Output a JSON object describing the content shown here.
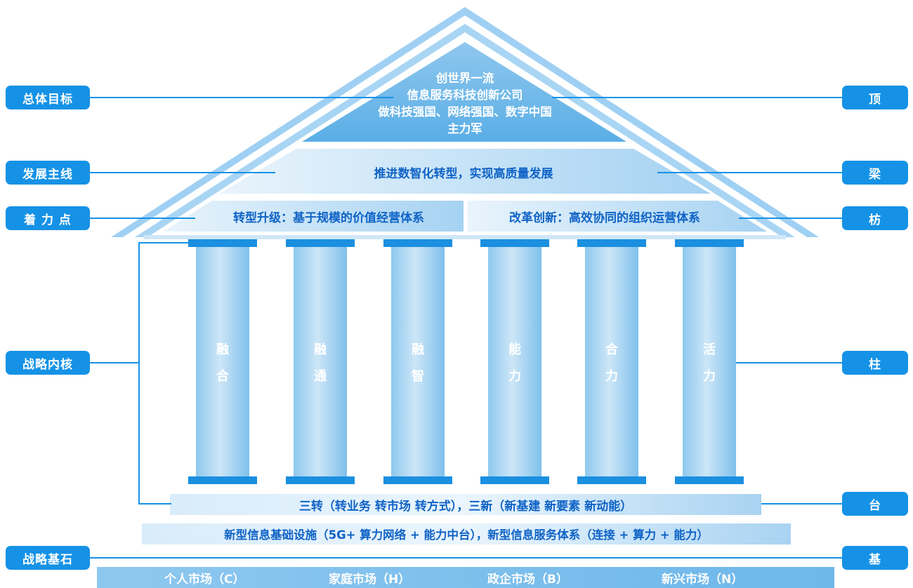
{
  "left_labels": [
    "总体目标",
    "发展主线",
    "着 力 点",
    "战略内核",
    "战略基石"
  ],
  "right_labels": [
    "顶",
    "梁",
    "枋",
    "柱",
    "台",
    "基"
  ],
  "roof_title": [
    "创世界一流",
    "信息服务科技创新公司",
    "做科技强国、网络强国、数字中国",
    "主力军"
  ],
  "main_line": "推进数智化转型，实现高质量发展",
  "focus_left": "转型升级：基于规模的价值经营体系",
  "focus_right": "改革创新：高效协同的组织运营体系",
  "pillars": [
    [
      "融",
      "合"
    ],
    [
      "融",
      "通"
    ],
    [
      "融",
      "智"
    ],
    [
      "能",
      "力"
    ],
    [
      "合",
      "力"
    ],
    [
      "活",
      "力"
    ]
  ],
  "platform_top": "三转（转业务 转市场 转方式），三新（新基建 新要素 新动能）",
  "platform_bottom": "新型信息基础设施（5G+ 算力网络 + 能力中台），新型信息服务体系（连接 + 算力 + 能力）",
  "markets": [
    "个人市场（C）",
    "家庭市场（H）",
    "政企市场（B）",
    "新兴市场（N）"
  ],
  "colors": {
    "accent": "#1592e6",
    "text_dark": "#0f63c6",
    "light_blue": "#cfe7f8"
  }
}
